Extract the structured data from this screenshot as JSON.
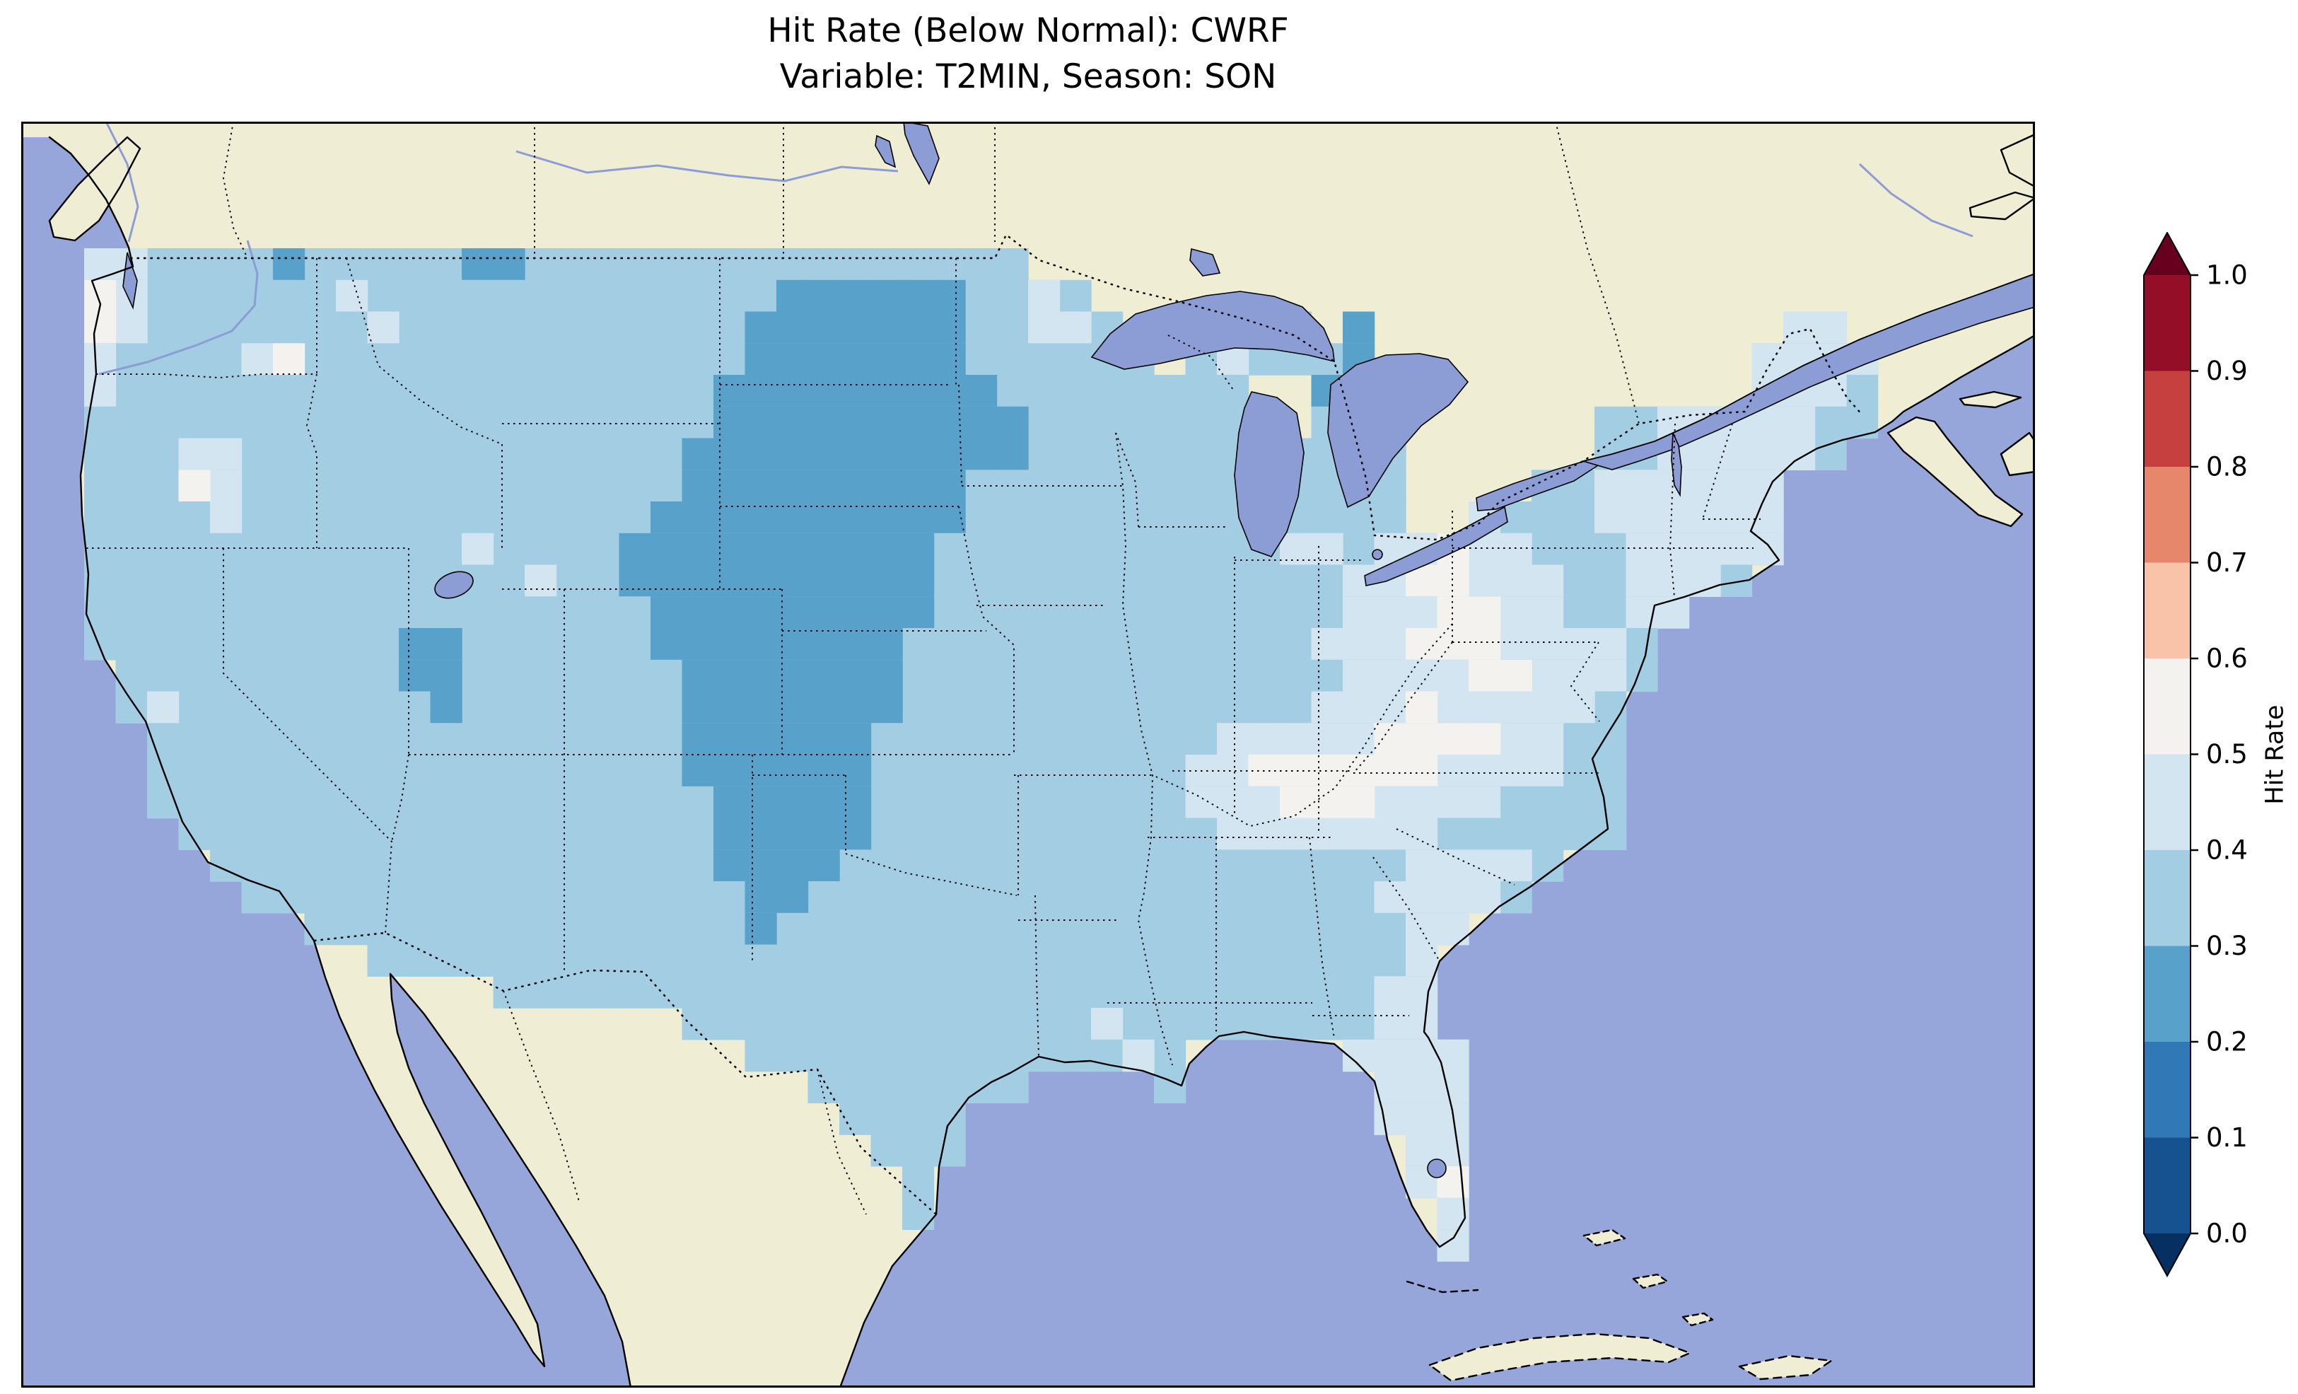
{
  "header": {
    "title_line1": "Hit Rate (Below Normal): CWRF",
    "title_line2": "Variable: T2MIN, Season: SON"
  },
  "chart_data": {
    "type": "heatmap",
    "title": "Hit Rate (Below Normal): CWRF",
    "subtitle": "Variable: T2MIN, Season: SON",
    "model": "CWRF",
    "variable": "T2MIN",
    "season": "SON",
    "category": "Below Normal",
    "colorbar": {
      "label": "Hit Rate",
      "orientation": "vertical",
      "extend": "both",
      "ticks": [
        "1.0",
        "0.9",
        "0.8",
        "0.7",
        "0.6",
        "0.5",
        "0.4",
        "0.3",
        "0.2",
        "0.1",
        "0.0"
      ]
    },
    "colormap": {
      "name": "RdBu_r",
      "band_edges": [
        0.0,
        0.1,
        0.2,
        0.3,
        0.4,
        0.5,
        0.6,
        0.7,
        0.8,
        0.9,
        1.0
      ],
      "band_colors": [
        "#175290",
        "#3079b6",
        "#58a1ca",
        "#a3cde3",
        "#d3e5f0",
        "#f4f2ee",
        "#f9c3a9",
        "#e6866b",
        "#c6403f",
        "#930e26"
      ],
      "under": "#053061",
      "over": "#67001f"
    },
    "map_colors": {
      "ocean": "#96a5da",
      "land": "#f0edd5",
      "lake": "#8c9cd4",
      "coast": "#000000"
    },
    "grid": {
      "cols": 64,
      "rows": 40,
      "cell_w": 44.5,
      "cell_h": 44.75,
      "legend": {
        "2": "0.2-0.3",
        "3": "0.3-0.4",
        "4": "0.4-0.5",
        "5": "0.5-0.6"
      },
      "rows_rle": [
        {
          "r": 4,
          "base": [
            [
              2,
              31
            ]
          ],
          "b2": [
            [
              8,
              8
            ],
            [
              14,
              15
            ]
          ],
          "b4": [
            [
              2,
              3
            ]
          ]
        },
        {
          "r": 5,
          "base": [
            [
              2,
              33
            ]
          ],
          "b2": [
            [
              24,
              29
            ]
          ],
          "b4": [
            [
              3,
              3
            ],
            [
              10,
              10
            ],
            [
              32,
              32
            ]
          ],
          "b5": [
            [
              2,
              2
            ]
          ]
        },
        {
          "r": 6,
          "base": [
            [
              2,
              34
            ],
            [
              36,
              40
            ],
            [
              42,
              42
            ],
            [
              56,
              57
            ]
          ],
          "b2": [
            [
              23,
              29
            ],
            [
              42,
              42
            ]
          ],
          "b4": [
            [
              3,
              3
            ],
            [
              11,
              11
            ],
            [
              32,
              33
            ],
            [
              37,
              37
            ],
            [
              56,
              57
            ]
          ],
          "b5": [
            [
              2,
              2
            ]
          ]
        },
        {
          "r": 7,
          "base": [
            [
              2,
              35
            ],
            [
              37,
              42
            ],
            [
              55,
              58
            ]
          ],
          "b2": [
            [
              23,
              29
            ],
            [
              42,
              42
            ]
          ],
          "b4": [
            [
              2,
              2
            ],
            [
              7,
              7
            ],
            [
              38,
              38
            ],
            [
              55,
              58
            ]
          ],
          "b5": [
            [
              8,
              8
            ]
          ]
        },
        {
          "r": 8,
          "base": [
            [
              2,
              38
            ],
            [
              41,
              43
            ],
            [
              55,
              58
            ]
          ],
          "b2": [
            [
              22,
              30
            ],
            [
              41,
              41
            ]
          ],
          "b4": [
            [
              2,
              2
            ],
            [
              55,
              57
            ]
          ]
        },
        {
          "r": 9,
          "base": [
            [
              2,
              38
            ],
            [
              41,
              43
            ],
            [
              50,
              58
            ]
          ],
          "b2": [
            [
              22,
              31
            ]
          ],
          "b4": [
            [
              52,
              56
            ]
          ]
        },
        {
          "r": 10,
          "base": [
            [
              2,
              43
            ],
            [
              50,
              57
            ]
          ],
          "b2": [
            [
              21,
              31
            ]
          ],
          "b4": [
            [
              5,
              6
            ],
            [
              52,
              56
            ]
          ]
        },
        {
          "r": 11,
          "base": [
            [
              2,
              43
            ],
            [
              48,
              55
            ]
          ],
          "b2": [
            [
              21,
              29
            ]
          ],
          "b4": [
            [
              6,
              6
            ],
            [
              50,
              55
            ]
          ],
          "b5": [
            [
              5,
              5
            ]
          ]
        },
        {
          "r": 12,
          "base": [
            [
              2,
              43
            ],
            [
              46,
              55
            ]
          ],
          "b2": [
            [
              20,
              29
            ]
          ],
          "b4": [
            [
              6,
              6
            ],
            [
              46,
              46
            ],
            [
              50,
              55
            ]
          ]
        },
        {
          "r": 13,
          "base": [
            [
              2,
              55
            ]
          ],
          "b2": [
            [
              19,
              28
            ]
          ],
          "b4": [
            [
              14,
              14
            ],
            [
              40,
              41
            ],
            [
              43,
              44
            ],
            [
              46,
              47
            ],
            [
              51,
              55
            ]
          ],
          "b5": [
            [
              45,
              45
            ]
          ]
        },
        {
          "r": 14,
          "base": [
            [
              2,
              54
            ]
          ],
          "b2": [
            [
              19,
              28
            ]
          ],
          "b4": [
            [
              16,
              16
            ],
            [
              42,
              43
            ],
            [
              46,
              48
            ],
            [
              51,
              53
            ]
          ],
          "b5": [
            [
              44,
              45
            ]
          ]
        },
        {
          "r": 15,
          "base": [
            [
              2,
              52
            ]
          ],
          "b2": [
            [
              20,
              28
            ]
          ],
          "b4": [
            [
              42,
              44
            ],
            [
              47,
              48
            ],
            [
              51,
              52
            ]
          ],
          "b5": [
            [
              45,
              46
            ]
          ]
        },
        {
          "r": 16,
          "base": [
            [
              2,
              51
            ]
          ],
          "b2": [
            [
              12,
              13
            ],
            [
              20,
              27
            ]
          ],
          "b4": [
            [
              41,
              43
            ],
            [
              47,
              50
            ]
          ],
          "b5": [
            [
              44,
              46
            ]
          ]
        },
        {
          "r": 17,
          "base": [
            [
              3,
              51
            ]
          ],
          "b2": [
            [
              12,
              13
            ],
            [
              21,
              27
            ]
          ],
          "b4": [
            [
              42,
              45
            ],
            [
              48,
              50
            ]
          ],
          "b5": [
            [
              46,
              47
            ]
          ]
        },
        {
          "r": 18,
          "base": [
            [
              3,
              50
            ]
          ],
          "b2": [
            [
              13,
              13
            ],
            [
              21,
              27
            ]
          ],
          "b4": [
            [
              4,
              4
            ],
            [
              41,
              43
            ],
            [
              45,
              49
            ]
          ],
          "b5": [
            [
              44,
              44
            ]
          ]
        },
        {
          "r": 19,
          "base": [
            [
              4,
              50
            ]
          ],
          "b2": [
            [
              21,
              26
            ]
          ],
          "b4": [
            [
              38,
              42
            ],
            [
              47,
              48
            ]
          ],
          "b5": [
            [
              43,
              46
            ]
          ]
        },
        {
          "r": 20,
          "base": [
            [
              4,
              50
            ]
          ],
          "b2": [
            [
              21,
              26
            ]
          ],
          "b4": [
            [
              37,
              38
            ],
            [
              45,
              48
            ]
          ],
          "b5": [
            [
              39,
              44
            ]
          ]
        },
        {
          "r": 21,
          "base": [
            [
              4,
              50
            ]
          ],
          "b2": [
            [
              22,
              26
            ]
          ],
          "b4": [
            [
              37,
              39
            ],
            [
              43,
              46
            ]
          ],
          "b5": [
            [
              40,
              42
            ]
          ]
        },
        {
          "r": 22,
          "base": [
            [
              5,
              50
            ]
          ],
          "b2": [
            [
              22,
              26
            ]
          ],
          "b4": [
            [
              38,
              44
            ]
          ]
        },
        {
          "r": 23,
          "base": [
            [
              6,
              48
            ]
          ],
          "b2": [
            [
              22,
              25
            ]
          ],
          "b4": [
            [
              44,
              47
            ]
          ]
        },
        {
          "r": 24,
          "base": [
            [
              7,
              47
            ]
          ],
          "b2": [
            [
              23,
              24
            ]
          ],
          "b4": [
            [
              43,
              46
            ]
          ]
        },
        {
          "r": 25,
          "base": [
            [
              9,
              45
            ]
          ],
          "b2": [
            [
              23,
              23
            ]
          ],
          "b4": [
            [
              44,
              45
            ]
          ]
        },
        {
          "r": 26,
          "base": [
            [
              11,
              44
            ]
          ],
          "b4": [
            [
              44,
              44
            ]
          ]
        },
        {
          "r": 27,
          "base": [
            [
              15,
              44
            ]
          ],
          "b4": [
            [
              43,
              44
            ]
          ]
        },
        {
          "r": 28,
          "base": [
            [
              21,
              44
            ]
          ],
          "b4": [
            [
              34,
              34
            ],
            [
              43,
              44
            ]
          ]
        },
        {
          "r": 29,
          "base": [
            [
              23,
              36
            ],
            [
              42,
              45
            ]
          ],
          "b4": [
            [
              35,
              35
            ],
            [
              42,
              45
            ]
          ]
        },
        {
          "r": 30,
          "base": [
            [
              25,
              31
            ],
            [
              36,
              36
            ],
            [
              43,
              45
            ]
          ],
          "b4": [
            [
              43,
              45
            ]
          ]
        },
        {
          "r": 31,
          "base": [
            [
              26,
              29
            ],
            [
              43,
              45
            ]
          ],
          "b4": [
            [
              43,
              45
            ]
          ]
        },
        {
          "r": 32,
          "base": [
            [
              27,
              29
            ],
            [
              44,
              45
            ]
          ],
          "b4": [
            [
              44,
              45
            ]
          ]
        },
        {
          "r": 33,
          "base": [
            [
              28,
              28
            ],
            [
              44,
              45
            ]
          ],
          "b4": [
            [
              44,
              44
            ]
          ],
          "b5": [
            [
              45,
              45
            ]
          ]
        },
        {
          "r": 34,
          "base": [
            [
              28,
              28
            ],
            [
              45,
              45
            ]
          ],
          "b4": [
            [
              45,
              45
            ]
          ]
        },
        {
          "r": 35,
          "base": [
            [
              45,
              45
            ]
          ],
          "b4": [
            [
              45,
              45
            ]
          ]
        }
      ]
    }
  }
}
